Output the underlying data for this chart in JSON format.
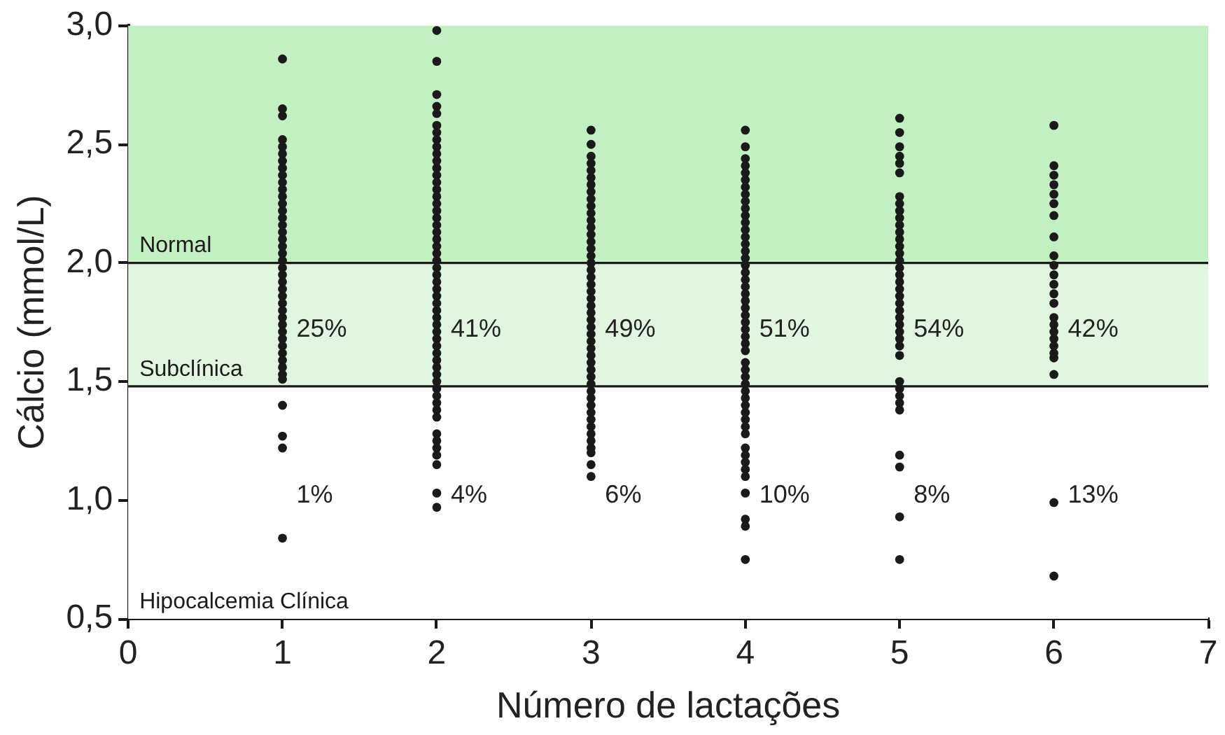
{
  "chart_data": {
    "type": "scatter",
    "xlabel": "Número de lactações",
    "ylabel": "Cálcio (mmol/L)",
    "xlim": [
      0,
      7
    ],
    "xticks": [
      0,
      1,
      2,
      3,
      4,
      5,
      6,
      7
    ],
    "ylim": [
      0.5,
      3.0
    ],
    "yticks": [
      {
        "value": 0.5,
        "label": "0,5"
      },
      {
        "value": 1.0,
        "label": "1,0"
      },
      {
        "value": 1.5,
        "label": "1,5"
      },
      {
        "value": 2.0,
        "label": "2,0"
      },
      {
        "value": 2.5,
        "label": "2,5"
      },
      {
        "value": 3.0,
        "label": "3,0"
      }
    ],
    "grid": false,
    "legend": false,
    "marker": "circle",
    "bands": [
      {
        "axis": "y",
        "from": 2.0,
        "to": 3.0,
        "label": "Normal",
        "color": "#c3f0c3"
      },
      {
        "axis": "y",
        "from": 1.48,
        "to": 2.0,
        "label": "Subclínica",
        "color": "#e1f5e1"
      },
      {
        "axis": "y",
        "from": 0.5,
        "to": 1.48,
        "label": "Hipocalcemia Clínica",
        "color": "#ffffff"
      }
    ],
    "ref_lines": [
      {
        "axis": "y",
        "value": 2.0,
        "color": "#1a1a1a"
      },
      {
        "axis": "y",
        "value": 1.48,
        "color": "#1a1a1a"
      }
    ],
    "annotations": [
      "25%",
      "1%",
      "41%",
      "4%",
      "49%",
      "6%",
      "51%",
      "10%",
      "54%",
      "8%",
      "42%",
      "13%"
    ],
    "series": [
      {
        "color": "#1a1a1a",
        "x": [
          1,
          1,
          1,
          1,
          1,
          1,
          1,
          1,
          1,
          1,
          1,
          1,
          1,
          1,
          1,
          1,
          1,
          1,
          1,
          1,
          1,
          1,
          1,
          1,
          1,
          1,
          1,
          1,
          1,
          1,
          1,
          1,
          1,
          1,
          1,
          1,
          1,
          1,
          1,
          1,
          1,
          1
        ],
        "values": [
          2.86,
          2.65,
          2.62,
          2.52,
          2.49,
          2.46,
          2.43,
          2.4,
          2.37,
          2.34,
          2.31,
          2.28,
          2.25,
          2.22,
          2.19,
          2.16,
          2.13,
          2.1,
          2.07,
          2.04,
          2.01,
          1.98,
          1.95,
          1.92,
          1.89,
          1.86,
          1.83,
          1.8,
          1.77,
          1.74,
          1.71,
          1.68,
          1.65,
          1.62,
          1.59,
          1.56,
          1.53,
          1.51,
          1.4,
          1.27,
          1.22,
          0.84
        ]
      },
      {
        "color": "#1a1a1a",
        "x": [
          2,
          2,
          2,
          2,
          2,
          2,
          2,
          2,
          2,
          2,
          2,
          2,
          2,
          2,
          2,
          2,
          2,
          2,
          2,
          2,
          2,
          2,
          2,
          2,
          2,
          2,
          2,
          2,
          2,
          2,
          2,
          2,
          2,
          2,
          2,
          2,
          2,
          2,
          2,
          2,
          2,
          2,
          2,
          2,
          2,
          2,
          2,
          2,
          2,
          2,
          2,
          2,
          2,
          2
        ],
        "values": [
          2.98,
          2.85,
          2.71,
          2.66,
          2.63,
          2.58,
          2.55,
          2.52,
          2.49,
          2.46,
          2.43,
          2.4,
          2.37,
          2.34,
          2.31,
          2.28,
          2.25,
          2.22,
          2.19,
          2.16,
          2.13,
          2.1,
          2.07,
          2.04,
          2.01,
          1.98,
          1.95,
          1.92,
          1.89,
          1.86,
          1.83,
          1.8,
          1.77,
          1.74,
          1.71,
          1.68,
          1.65,
          1.62,
          1.59,
          1.56,
          1.53,
          1.5,
          1.47,
          1.44,
          1.41,
          1.38,
          1.35,
          1.28,
          1.25,
          1.22,
          1.19,
          1.15,
          1.03,
          0.97
        ]
      },
      {
        "color": "#1a1a1a",
        "x": [
          3,
          3,
          3,
          3,
          3,
          3,
          3,
          3,
          3,
          3,
          3,
          3,
          3,
          3,
          3,
          3,
          3,
          3,
          3,
          3,
          3,
          3,
          3,
          3,
          3,
          3,
          3,
          3,
          3,
          3,
          3,
          3,
          3,
          3,
          3,
          3,
          3,
          3,
          3,
          3,
          3,
          3,
          3,
          3,
          3,
          3,
          3
        ],
        "values": [
          2.56,
          2.5,
          2.45,
          2.42,
          2.39,
          2.36,
          2.33,
          2.3,
          2.27,
          2.24,
          2.21,
          2.18,
          2.15,
          2.12,
          2.09,
          2.06,
          2.03,
          2.0,
          1.97,
          1.94,
          1.91,
          1.88,
          1.85,
          1.82,
          1.79,
          1.76,
          1.73,
          1.7,
          1.67,
          1.64,
          1.61,
          1.58,
          1.55,
          1.52,
          1.49,
          1.46,
          1.43,
          1.4,
          1.37,
          1.34,
          1.31,
          1.28,
          1.25,
          1.22,
          1.2,
          1.15,
          1.1
        ]
      },
      {
        "color": "#1a1a1a",
        "x": [
          4,
          4,
          4,
          4,
          4,
          4,
          4,
          4,
          4,
          4,
          4,
          4,
          4,
          4,
          4,
          4,
          4,
          4,
          4,
          4,
          4,
          4,
          4,
          4,
          4,
          4,
          4,
          4,
          4,
          4,
          4,
          4,
          4,
          4,
          4,
          4,
          4,
          4,
          4,
          4,
          4,
          4,
          4,
          4,
          4,
          4,
          4,
          4,
          4,
          4
        ],
        "values": [
          2.56,
          2.49,
          2.44,
          2.41,
          2.38,
          2.35,
          2.32,
          2.29,
          2.26,
          2.23,
          2.2,
          2.17,
          2.14,
          2.11,
          2.08,
          2.05,
          2.02,
          1.99,
          1.96,
          1.93,
          1.9,
          1.87,
          1.84,
          1.81,
          1.78,
          1.75,
          1.72,
          1.69,
          1.66,
          1.63,
          1.58,
          1.55,
          1.52,
          1.49,
          1.46,
          1.43,
          1.4,
          1.37,
          1.34,
          1.31,
          1.28,
          1.22,
          1.19,
          1.16,
          1.13,
          1.1,
          1.03,
          0.92,
          0.89,
          0.75
        ]
      },
      {
        "color": "#1a1a1a",
        "x": [
          5,
          5,
          5,
          5,
          5,
          5,
          5,
          5,
          5,
          5,
          5,
          5,
          5,
          5,
          5,
          5,
          5,
          5,
          5,
          5,
          5,
          5,
          5,
          5,
          5,
          5,
          5,
          5,
          5,
          5,
          5,
          5,
          5,
          5,
          5,
          5,
          5,
          5
        ],
        "values": [
          2.61,
          2.55,
          2.49,
          2.45,
          2.42,
          2.38,
          2.28,
          2.25,
          2.22,
          2.19,
          2.16,
          2.13,
          2.1,
          2.07,
          2.04,
          2.01,
          1.98,
          1.95,
          1.92,
          1.89,
          1.86,
          1.83,
          1.8,
          1.77,
          1.74,
          1.71,
          1.68,
          1.65,
          1.61,
          1.5,
          1.47,
          1.44,
          1.41,
          1.38,
          1.19,
          1.14,
          0.93,
          0.75
        ]
      },
      {
        "color": "#1a1a1a",
        "x": [
          6,
          6,
          6,
          6,
          6,
          6,
          6,
          6,
          6,
          6,
          6,
          6,
          6,
          6,
          6,
          6,
          6,
          6,
          6,
          6,
          6,
          6,
          6,
          6
        ],
        "values": [
          2.58,
          2.41,
          2.37,
          2.33,
          2.29,
          2.25,
          2.2,
          2.11,
          2.03,
          1.99,
          1.95,
          1.91,
          1.87,
          1.83,
          1.77,
          1.74,
          1.71,
          1.68,
          1.65,
          1.62,
          1.6,
          1.53,
          0.99,
          0.68
        ]
      }
    ]
  }
}
